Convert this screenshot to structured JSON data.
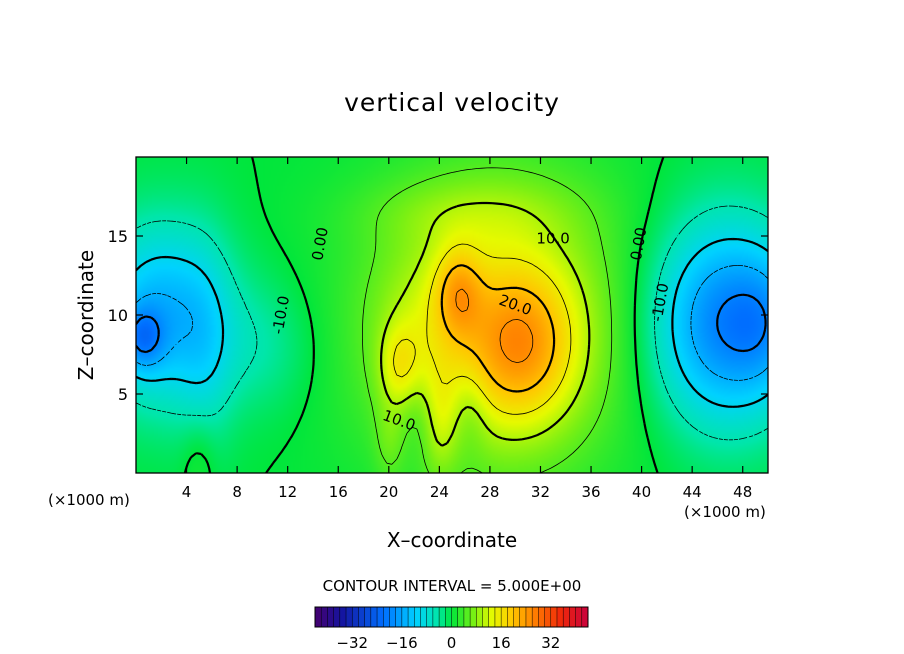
{
  "chart_data": {
    "type": "contour",
    "title": "vertical velocity",
    "xlabel": "X–coordinate",
    "ylabel": "Z–coordinate",
    "x_unit": "(×1000 m)",
    "y_unit": "(×1000 m)",
    "xlim": [
      0,
      50
    ],
    "ylim": [
      0,
      20
    ],
    "x_ticks": [
      4,
      8,
      12,
      16,
      20,
      24,
      28,
      32,
      36,
      40,
      44,
      48
    ],
    "y_ticks": [
      5,
      10,
      15
    ],
    "contour_interval_text": "CONTOUR INTERVAL = 5.000E+00",
    "contour_interval": 5.0,
    "contour_labels": [
      {
        "text": "0.00",
        "x": 14.6,
        "y": 14.5
      },
      {
        "text": "0.00",
        "x": 39.8,
        "y": 14.5
      },
      {
        "text": "10.0",
        "x": 33.0,
        "y": 14.8
      },
      {
        "text": "20.0",
        "x": 30.0,
        "y": 10.6
      },
      {
        "text": "10.0",
        "x": 20.8,
        "y": 3.3
      },
      {
        "text": "-10.0",
        "x": 11.5,
        "y": 10.0
      },
      {
        "text": "-10.0",
        "x": 41.5,
        "y": 10.8
      }
    ],
    "features": [
      {
        "kind": "updraft",
        "x": 30.5,
        "z": 8.0,
        "peak": 26
      },
      {
        "kind": "updraft",
        "x": 25.5,
        "z": 11.5,
        "peak": 24
      },
      {
        "kind": "updraft",
        "x": 20.8,
        "z": 6.8,
        "peak": 20
      },
      {
        "kind": "downdraft",
        "x": 1.2,
        "z": 9.0,
        "peak": -22
      },
      {
        "kind": "downdraft",
        "x": 46.5,
        "z": 9.5,
        "peak": -24
      }
    ],
    "colorbar": {
      "range": [
        -44,
        44
      ],
      "ticks": [
        -32,
        -16,
        0,
        16,
        32
      ]
    }
  }
}
